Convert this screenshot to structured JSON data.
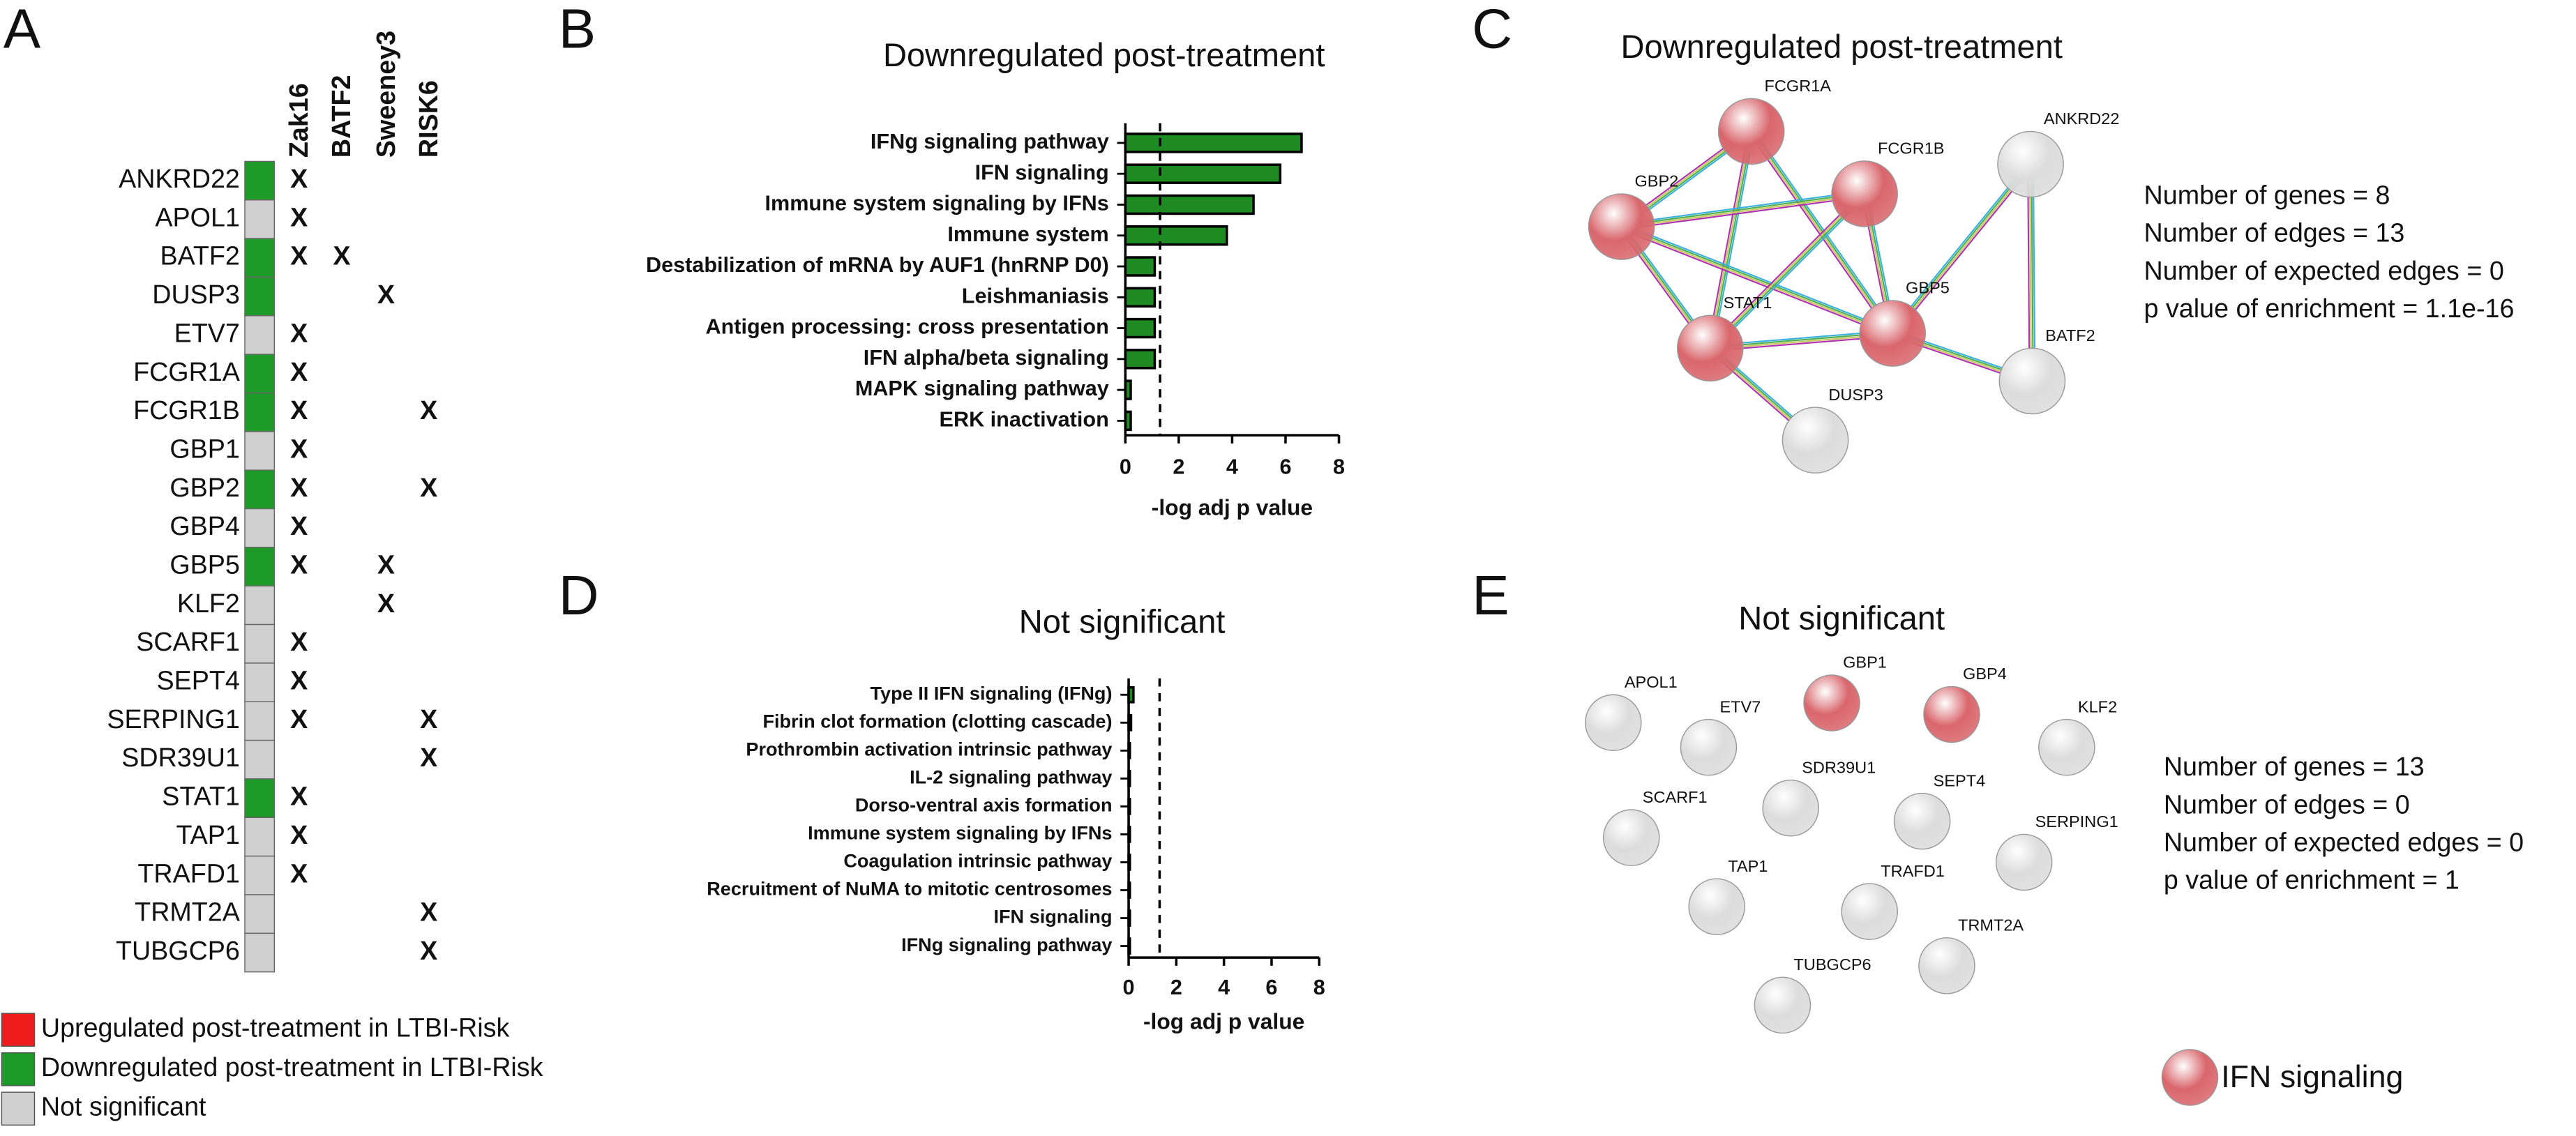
{
  "panel_labels": [
    "A",
    "B",
    "C",
    "D",
    "E"
  ],
  "panel_a": {
    "columns": [
      "Zak16",
      "BATF2",
      "Sweeney3",
      "RISK6"
    ],
    "rows": [
      {
        "gene": "ANKRD22",
        "color": "#1e9a28",
        "cells": [
          "X",
          null,
          null,
          null
        ]
      },
      {
        "gene": "APOL1",
        "color": "#d0d0d0",
        "cells": [
          "X",
          null,
          null,
          null
        ]
      },
      {
        "gene": "BATF2",
        "color": "#1e9a28",
        "cells": [
          "X",
          "X",
          null,
          null
        ]
      },
      {
        "gene": "DUSP3",
        "color": "#1e9a28",
        "cells": [
          null,
          null,
          "X",
          null
        ]
      },
      {
        "gene": "ETV7",
        "color": "#d0d0d0",
        "cells": [
          "X",
          null,
          null,
          null
        ]
      },
      {
        "gene": "FCGR1A",
        "color": "#1e9a28",
        "cells": [
          "X",
          null,
          null,
          null
        ]
      },
      {
        "gene": "FCGR1B",
        "color": "#1e9a28",
        "cells": [
          "X",
          null,
          null,
          "X"
        ]
      },
      {
        "gene": "GBP1",
        "color": "#d0d0d0",
        "cells": [
          "X",
          null,
          null,
          null
        ]
      },
      {
        "gene": "GBP2",
        "color": "#1e9a28",
        "cells": [
          "X",
          null,
          null,
          "X"
        ]
      },
      {
        "gene": "GBP4",
        "color": "#d0d0d0",
        "cells": [
          "X",
          null,
          null,
          null
        ]
      },
      {
        "gene": "GBP5",
        "color": "#1e9a28",
        "cells": [
          "X",
          null,
          "X",
          null
        ]
      },
      {
        "gene": "KLF2",
        "color": "#d0d0d0",
        "cells": [
          null,
          null,
          "X",
          null
        ]
      },
      {
        "gene": "SCARF1",
        "color": "#d0d0d0",
        "cells": [
          "X",
          null,
          null,
          null
        ]
      },
      {
        "gene": "SEPT4",
        "color": "#d0d0d0",
        "cells": [
          "X",
          null,
          null,
          null
        ]
      },
      {
        "gene": "SERPING1",
        "color": "#d0d0d0",
        "cells": [
          "X",
          null,
          null,
          "X"
        ]
      },
      {
        "gene": "SDR39U1",
        "color": "#d0d0d0",
        "cells": [
          null,
          null,
          null,
          "X"
        ]
      },
      {
        "gene": "STAT1",
        "color": "#1e9a28",
        "cells": [
          "X",
          null,
          null,
          null
        ]
      },
      {
        "gene": "TAP1",
        "color": "#d0d0d0",
        "cells": [
          "X",
          null,
          null,
          null
        ]
      },
      {
        "gene": "TRAFD1",
        "color": "#d0d0d0",
        "cells": [
          "X",
          null,
          null,
          null
        ]
      },
      {
        "gene": "TRMT2A",
        "color": "#d0d0d0",
        "cells": [
          null,
          null,
          null,
          "X"
        ]
      },
      {
        "gene": "TUBGCP6",
        "color": "#d0d0d0",
        "cells": [
          null,
          null,
          null,
          "X"
        ]
      }
    ],
    "legend": [
      {
        "label": "Upregulated post-treatment in LTBI-Risk",
        "color": "#ee1c1c"
      },
      {
        "label": "Downregulated post-treatment in LTBI-Risk",
        "color": "#1e9a28"
      },
      {
        "label": "Not significant",
        "color": "#d0d0d0"
      }
    ]
  },
  "chart_data": [
    {
      "type": "barh",
      "title": "Downregulated post-treatment",
      "categories": [
        "IFNg signaling pathway",
        "IFN signaling",
        "Immune system signaling by IFNs",
        "Immune system",
        "Destabilization of mRNA by AUF1 (hnRNP D0)",
        "Leishmaniasis",
        "Antigen processing: cross presentation",
        "IFN alpha/beta signaling",
        "MAPK signaling pathway",
        "ERK inactivation"
      ],
      "values": [
        6.6,
        5.8,
        4.8,
        3.8,
        1.1,
        1.1,
        1.1,
        1.1,
        0.2,
        0.2
      ],
      "color": "#1e8a22",
      "xlim": [
        0,
        8
      ],
      "xticks": [
        0,
        2,
        4,
        6,
        8
      ],
      "xlabel": "-log adj p value",
      "threshold": 1.3
    },
    {
      "type": "barh",
      "title": "Not significant",
      "categories": [
        "Type II IFN signaling (IFNg)",
        "Fibrin clot formation (clotting cascade)",
        "Prothrombin activation intrinsic pathway",
        "IL-2 signaling pathway",
        "Dorso-ventral axis formation",
        "Immune system signaling by IFNs",
        "Coagulation intrinsic pathway",
        "Recruitment of NuMA to mitotic centrosomes",
        "IFN signaling",
        "IFNg signaling pathway"
      ],
      "values": [
        0.2,
        0.1,
        0.05,
        0.05,
        0.05,
        0.05,
        0.05,
        0.05,
        0.05,
        0.05
      ],
      "color": "#1e8a22",
      "xlim": [
        0,
        8
      ],
      "xticks": [
        0,
        2,
        4,
        6,
        8
      ],
      "xlabel": "-log adj p value",
      "threshold": 1.3
    }
  ],
  "networks": [
    {
      "title": "Downregulated post-treatment",
      "nodes": [
        {
          "label": "FCGR1A",
          "color": "#d9666c"
        },
        {
          "label": "GBP2",
          "color": "#d9666c"
        },
        {
          "label": "FCGR1B",
          "color": "#d9666c"
        },
        {
          "label": "ANKRD22",
          "color": "#dcdcdc"
        },
        {
          "label": "STAT1",
          "color": "#d9666c"
        },
        {
          "label": "GBP5",
          "color": "#d9666c"
        },
        {
          "label": "BATF2",
          "color": "#dcdcdc"
        },
        {
          "label": "DUSP3",
          "color": "#dcdcdc"
        }
      ],
      "stats": [
        "Number of genes = 8",
        "Number of edges = 13",
        "Number of expected edges = 0",
        "p value of enrichment = 1.1e-16"
      ]
    },
    {
      "title": "Not significant",
      "nodes": [
        {
          "label": "APOL1",
          "color": "#dcdcdc"
        },
        {
          "label": "GBP1",
          "color": "#d9666c"
        },
        {
          "label": "GBP4",
          "color": "#d9666c"
        },
        {
          "label": "ETV7",
          "color": "#dcdcdc"
        },
        {
          "label": "KLF2",
          "color": "#dcdcdc"
        },
        {
          "label": "SDR39U1",
          "color": "#dcdcdc"
        },
        {
          "label": "SEPT4",
          "color": "#dcdcdc"
        },
        {
          "label": "SCARF1",
          "color": "#dcdcdc"
        },
        {
          "label": "SERPING1",
          "color": "#dcdcdc"
        },
        {
          "label": "TAP1",
          "color": "#dcdcdc"
        },
        {
          "label": "TRAFD1",
          "color": "#dcdcdc"
        },
        {
          "label": "TRMT2A",
          "color": "#dcdcdc"
        },
        {
          "label": "TUBGCP6",
          "color": "#dcdcdc"
        }
      ],
      "stats": [
        "Number of genes = 13",
        "Number of edges = 0",
        "Number of expected edges = 0",
        "p value of enrichment = 1"
      ]
    }
  ],
  "network_legend": {
    "label": "IFN signaling",
    "color": "#d9666c"
  }
}
